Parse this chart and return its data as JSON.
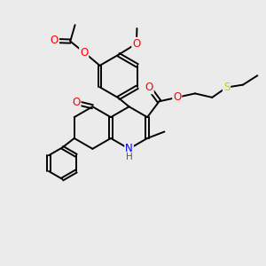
{
  "bg_color": "#ebebeb",
  "atom_colors": {
    "O": "#ff0000",
    "N": "#0000ff",
    "S": "#cccc00",
    "C": "#000000",
    "H": "#555555"
  },
  "bond_color": "#000000",
  "bond_width": 1.4,
  "font_size_atom": 8.5,
  "font_size_small": 7.5,
  "xlim": [
    0,
    10
  ],
  "ylim": [
    0,
    10
  ]
}
